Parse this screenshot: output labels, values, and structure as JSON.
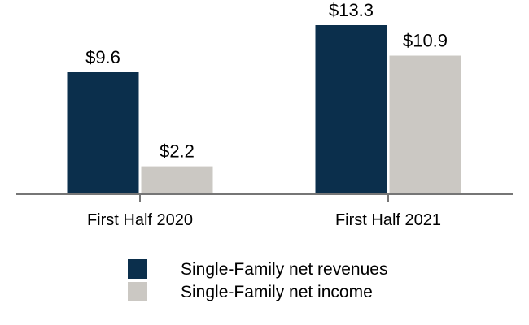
{
  "chart_data": {
    "type": "bar",
    "categories": [
      "First Half 2020",
      "First Half 2021"
    ],
    "series": [
      {
        "name": "Single-Family net revenues",
        "values": [
          9.6,
          13.3
        ],
        "labels": [
          "$9.6",
          "$13.3"
        ],
        "color": "#0b2f4c"
      },
      {
        "name": "Single-Family net income",
        "values": [
          2.2,
          10.9
        ],
        "labels": [
          "$2.2",
          "$10.9"
        ],
        "color": "#cbc8c3"
      }
    ],
    "ylim": [
      0,
      13.3
    ],
    "grid": false,
    "legend": "bottom-center",
    "axis_color": "#767676"
  }
}
